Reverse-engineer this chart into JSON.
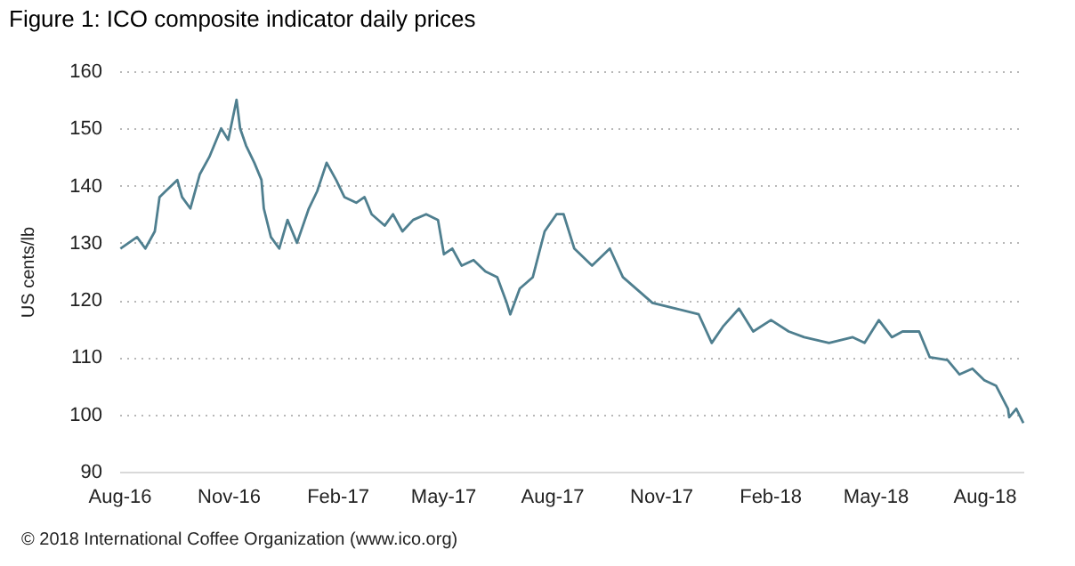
{
  "chart_data": {
    "type": "line",
    "title": "Figure 1: ICO composite indicator daily prices",
    "ylabel": "US cents/lb",
    "annotations": [
      "© 2018 International Coffee Organization (www.ico.org)"
    ],
    "x": [
      "2016-08-02",
      "2016-08-16",
      "2016-08-23",
      "2016-08-31",
      "2016-09-04",
      "2016-09-09",
      "2016-09-19",
      "2016-09-23",
      "2016-09-30",
      "2016-10-08",
      "2016-10-16",
      "2016-10-26",
      "2016-11-01",
      "2016-11-07",
      "2016-11-08",
      "2016-11-11",
      "2016-11-16",
      "2016-11-23",
      "2016-11-29",
      "2016-12-01",
      "2016-12-07",
      "2016-12-14",
      "2016-12-21",
      "2016-12-29",
      "2017-01-08",
      "2017-01-15",
      "2017-01-23",
      "2017-01-31",
      "2017-02-07",
      "2017-02-17",
      "2017-02-24",
      "2017-03-02",
      "2017-03-13",
      "2017-03-20",
      "2017-03-28",
      "2017-04-06",
      "2017-04-17",
      "2017-04-27",
      "2017-05-02",
      "2017-05-09",
      "2017-05-17",
      "2017-05-27",
      "2017-06-06",
      "2017-06-16",
      "2017-06-24",
      "2017-06-27",
      "2017-07-05",
      "2017-07-16",
      "2017-07-26",
      "2017-08-05",
      "2017-08-11",
      "2017-08-20",
      "2017-09-04",
      "2017-09-19",
      "2017-09-30",
      "2017-10-25",
      "2017-11-14",
      "2017-12-03",
      "2017-12-14",
      "2017-12-24",
      "2018-01-06",
      "2018-01-18",
      "2018-02-02",
      "2018-02-17",
      "2018-03-02",
      "2018-03-23",
      "2018-04-12",
      "2018-04-22",
      "2018-05-04",
      "2018-05-15",
      "2018-05-24",
      "2018-06-07",
      "2018-06-16",
      "2018-07-01",
      "2018-07-11",
      "2018-07-22",
      "2018-08-01",
      "2018-08-11",
      "2018-08-21",
      "2018-08-22",
      "2018-08-28",
      "2018-09-03"
    ],
    "series": [
      {
        "color": "#4f7f8f",
        "values": [
          129,
          131,
          129,
          132,
          138,
          139,
          141,
          138,
          136,
          142,
          145,
          150,
          148,
          154,
          155,
          150,
          147,
          144,
          141,
          136,
          131,
          129,
          134,
          130,
          136,
          139,
          144,
          141,
          138,
          137,
          138,
          135,
          133,
          135,
          132,
          134,
          135,
          134,
          128,
          129,
          126,
          127,
          125,
          124,
          119.5,
          117.5,
          122,
          124,
          132,
          135,
          135,
          129,
          126,
          129,
          124,
          119.5,
          118.5,
          117.5,
          112.5,
          115.5,
          118.5,
          114.5,
          116.5,
          114.5,
          113.5,
          112.5,
          113.5,
          112.5,
          116.5,
          113.5,
          114.5,
          114.5,
          110,
          109.5,
          107,
          108,
          106,
          105,
          101,
          99.5,
          101,
          98.5
        ]
      }
    ],
    "xlim": [
      "2016-08-01",
      "2018-09-03"
    ],
    "xticks": [
      {
        "value": "2016-08-01",
        "label": "Aug-16"
      },
      {
        "value": "2016-11-01",
        "label": "Nov-16"
      },
      {
        "value": "2017-02-01",
        "label": "Feb-17"
      },
      {
        "value": "2017-05-01",
        "label": "May-17"
      },
      {
        "value": "2017-08-01",
        "label": "Aug-17"
      },
      {
        "value": "2017-11-01",
        "label": "Nov-17"
      },
      {
        "value": "2018-02-01",
        "label": "Feb-18"
      },
      {
        "value": "2018-05-01",
        "label": "May-18"
      },
      {
        "value": "2018-08-01",
        "label": "Aug-18"
      }
    ],
    "ylim": [
      90,
      160
    ],
    "yticks": [
      90,
      100,
      110,
      120,
      130,
      140,
      150,
      160
    ],
    "grid": "y"
  }
}
